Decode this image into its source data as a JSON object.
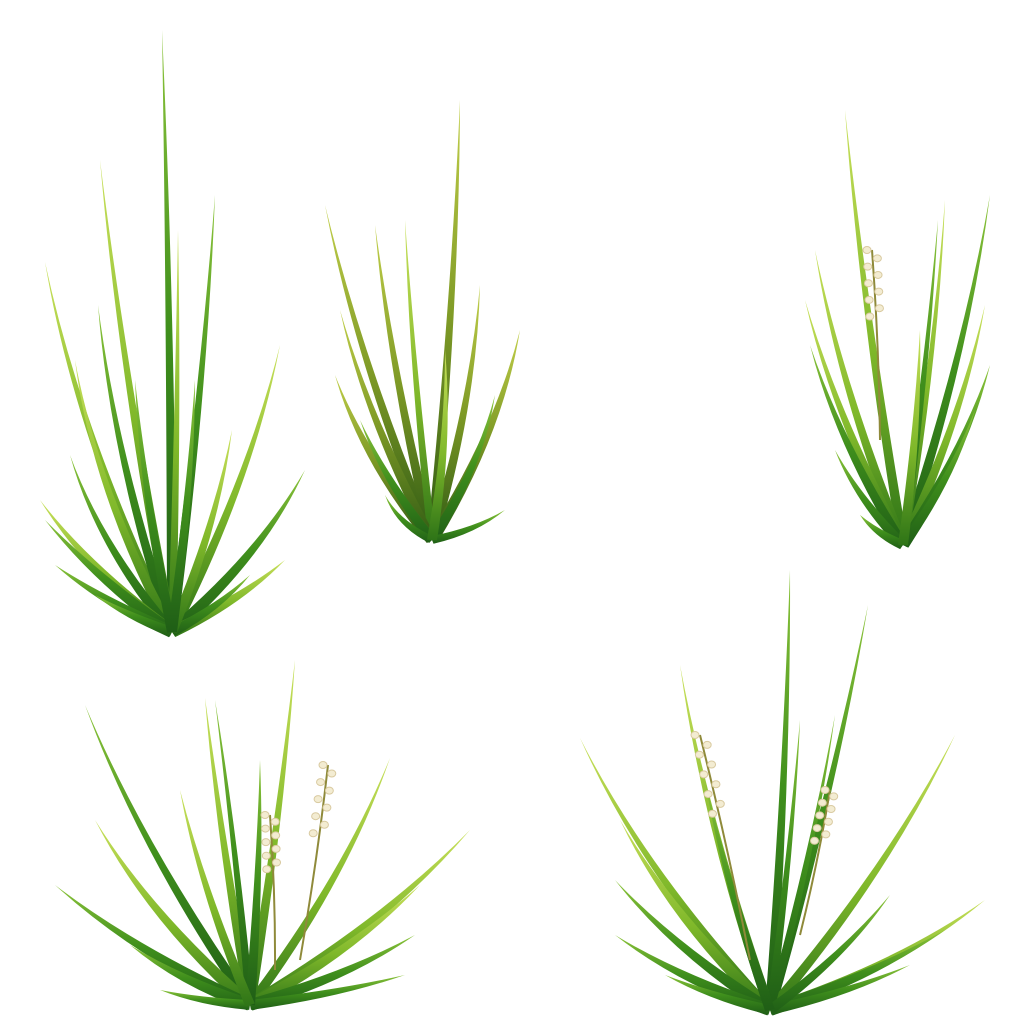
{
  "background": "#ffffff",
  "palette": {
    "dark_green": "#1f6b1a",
    "mid_green": "#4f9a1e",
    "light_green": "#a6d23a",
    "yellow_green": "#c8d94a",
    "flower_white": "#f3ecd2",
    "flower_shadow": "#d9caa0",
    "stem_brown": "#8f8a3a"
  },
  "clumps": [
    {
      "name": "grass-clump-tall-left",
      "flowers": 0
    },
    {
      "name": "grass-clump-top-center",
      "flowers": 0
    },
    {
      "name": "grass-clump-top-right",
      "flowers": 1
    },
    {
      "name": "grass-clump-bottom-left",
      "flowers": 2
    },
    {
      "name": "grass-clump-bottom-right",
      "flowers": 2
    }
  ]
}
